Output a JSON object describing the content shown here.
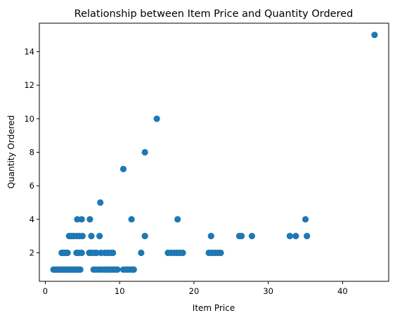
{
  "chart_data": {
    "type": "scatter",
    "title": "Relationship between Item Price and Quantity Ordered",
    "xlabel": "Item Price",
    "ylabel": "Quantity Ordered",
    "xlim": [
      -0.8,
      46.2
    ],
    "ylim": [
      0.3,
      15.7
    ],
    "xticks": [
      0,
      10,
      20,
      30,
      40
    ],
    "yticks": [
      2,
      4,
      6,
      8,
      10,
      12,
      14
    ],
    "grid": false,
    "marker_color": "#1f77b4",
    "points": [
      [
        1.1,
        1
      ],
      [
        1.3,
        1
      ],
      [
        1.5,
        1
      ],
      [
        1.7,
        1
      ],
      [
        1.9,
        1
      ],
      [
        2.1,
        1
      ],
      [
        2.3,
        1
      ],
      [
        2.5,
        1
      ],
      [
        2.7,
        1
      ],
      [
        2.9,
        1
      ],
      [
        3.1,
        1
      ],
      [
        3.3,
        1
      ],
      [
        3.5,
        1
      ],
      [
        3.7,
        1
      ],
      [
        3.9,
        1
      ],
      [
        4.1,
        1
      ],
      [
        4.3,
        1
      ],
      [
        4.5,
        1
      ],
      [
        4.7,
        1
      ],
      [
        6.5,
        1
      ],
      [
        6.8,
        1
      ],
      [
        7.2,
        1
      ],
      [
        7.5,
        1
      ],
      [
        7.9,
        1
      ],
      [
        8.2,
        1
      ],
      [
        8.5,
        1
      ],
      [
        8.8,
        1
      ],
      [
        9.1,
        1
      ],
      [
        9.4,
        1
      ],
      [
        9.7,
        1
      ],
      [
        10.5,
        1
      ],
      [
        10.8,
        1
      ],
      [
        11.1,
        1
      ],
      [
        11.4,
        1
      ],
      [
        11.7,
        1
      ],
      [
        11.9,
        1
      ],
      [
        2.2,
        2
      ],
      [
        2.4,
        2
      ],
      [
        2.6,
        2
      ],
      [
        2.8,
        2
      ],
      [
        3.0,
        2
      ],
      [
        4.2,
        2
      ],
      [
        4.5,
        2
      ],
      [
        4.9,
        2
      ],
      [
        5.9,
        2
      ],
      [
        6.2,
        2
      ],
      [
        6.6,
        2
      ],
      [
        6.9,
        2
      ],
      [
        7.5,
        2
      ],
      [
        8.0,
        2
      ],
      [
        8.4,
        2
      ],
      [
        8.8,
        2
      ],
      [
        9.1,
        2
      ],
      [
        12.9,
        2
      ],
      [
        16.5,
        2
      ],
      [
        16.9,
        2
      ],
      [
        17.3,
        2
      ],
      [
        17.7,
        2
      ],
      [
        18.1,
        2
      ],
      [
        18.5,
        2
      ],
      [
        22.0,
        2
      ],
      [
        22.4,
        2
      ],
      [
        22.8,
        2
      ],
      [
        23.2,
        2
      ],
      [
        23.6,
        2
      ],
      [
        3.2,
        3
      ],
      [
        3.5,
        3
      ],
      [
        3.8,
        3
      ],
      [
        4.2,
        3
      ],
      [
        4.6,
        3
      ],
      [
        5.0,
        3
      ],
      [
        6.2,
        3
      ],
      [
        7.3,
        3
      ],
      [
        13.4,
        3
      ],
      [
        22.3,
        3
      ],
      [
        26.1,
        3
      ],
      [
        26.4,
        3
      ],
      [
        27.8,
        3
      ],
      [
        32.9,
        3
      ],
      [
        33.7,
        3
      ],
      [
        35.2,
        3
      ],
      [
        4.3,
        4
      ],
      [
        4.9,
        4
      ],
      [
        6.0,
        4
      ],
      [
        11.6,
        4
      ],
      [
        17.8,
        4
      ],
      [
        35.0,
        4
      ],
      [
        7.4,
        5
      ],
      [
        10.5,
        7
      ],
      [
        13.4,
        8
      ],
      [
        15.0,
        10
      ],
      [
        44.3,
        15
      ]
    ]
  }
}
